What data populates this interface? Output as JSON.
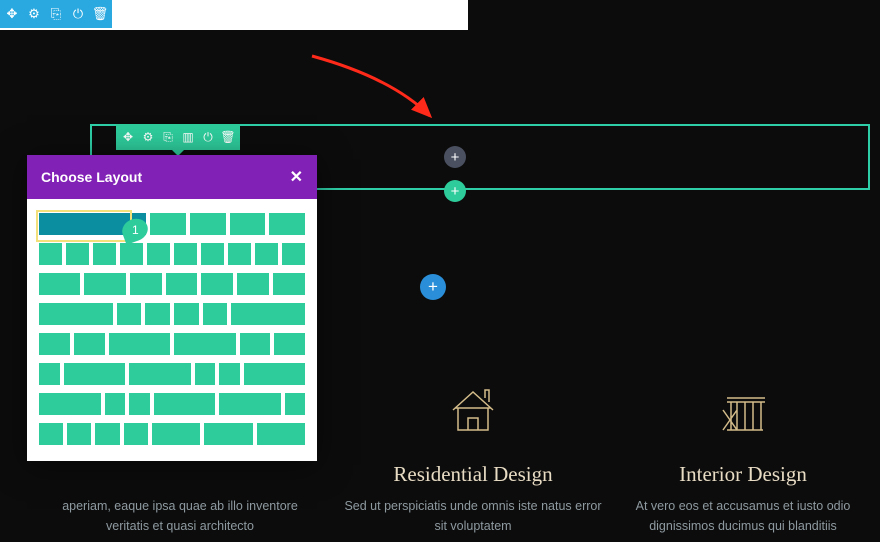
{
  "colors": {
    "page_bg": "#0c0c0c",
    "blue_toolbar": "#29a9e0",
    "teal_toolbar": "#2ecc9b",
    "section_border": "#2ecfa8",
    "modal_header": "#8121b5",
    "layout_block": "#2ecc9b",
    "selected_block": "#0a8ea0",
    "selected_outline": "#f3e07a",
    "badge": "#e8402f",
    "arrow": "#ff2a1a",
    "gray_circle": "#4a5060",
    "blue_circle": "#2a8fd8",
    "heading_text": "#e8dcc4",
    "body_text": "#8e9aa0",
    "icon_stroke": "#d4bc8a"
  },
  "top_toolbar_icons": [
    "move",
    "settings",
    "duplicate",
    "power",
    "delete"
  ],
  "row_toolbar_icons": [
    "move",
    "settings",
    "duplicate",
    "columns",
    "power",
    "delete"
  ],
  "modal": {
    "title": "Choose Layout",
    "close": "✕",
    "badge": "1",
    "layout_rows": [
      [
        3,
        1,
        1,
        1,
        1
      ],
      [
        1,
        1,
        1,
        1,
        1,
        1,
        1,
        1,
        1,
        1
      ],
      [
        1.3,
        1.3,
        1,
        1,
        1,
        1,
        1
      ],
      [
        3,
        1,
        1,
        1,
        1,
        3
      ],
      [
        1,
        1,
        2,
        2,
        1,
        1
      ],
      [
        1,
        3,
        3,
        1,
        1,
        3
      ],
      [
        3,
        1,
        1,
        3,
        3,
        1
      ],
      [
        1,
        1,
        1,
        1,
        2,
        2,
        2
      ]
    ]
  },
  "columns": [
    {
      "heading": "",
      "text": "aperiam, eaque ipsa quae ab illo inventore veritatis et quasi architecto"
    },
    {
      "heading": "Residential Design",
      "text": "Sed ut perspiciatis unde omnis iste natus error sit voluptatem"
    },
    {
      "heading": "Interior Design",
      "text": "At vero eos et accusamus et iusto odio dignissimos ducimus qui blanditiis"
    }
  ]
}
